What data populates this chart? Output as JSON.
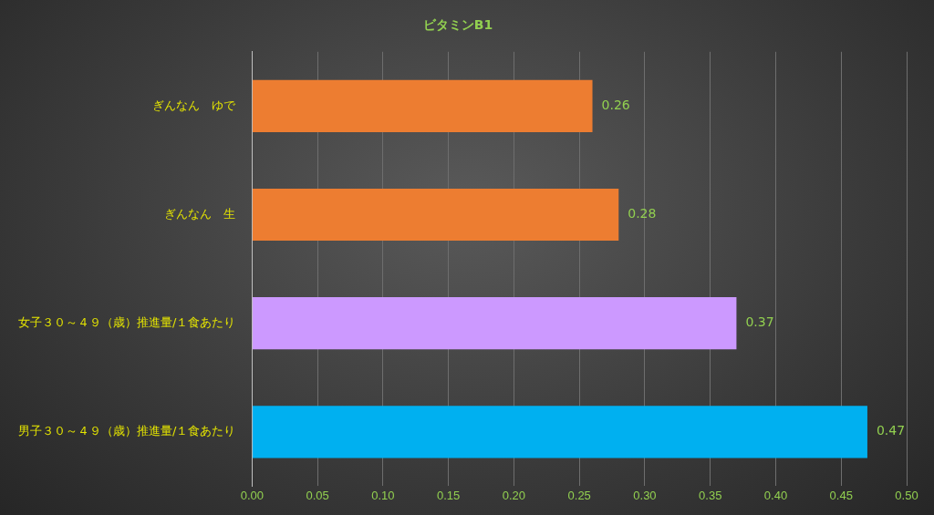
{
  "chart_data": {
    "type": "bar",
    "orientation": "horizontal",
    "title": "ビタミンB1",
    "categories": [
      "ぎんなん　ゆで",
      "ぎんなん　生",
      "女子３０～４９（歳）推進量/１食あたり",
      "男子３０～４９（歳）推進量/１食あたり"
    ],
    "values": [
      0.26,
      0.28,
      0.37,
      0.47
    ],
    "colors": [
      "#ed7d31",
      "#ed7d31",
      "#cc99ff",
      "#00b0f0"
    ],
    "xlim": [
      0,
      0.5
    ],
    "xticks": [
      {
        "value": 0,
        "label": "0.00"
      },
      {
        "value": 0.05,
        "label": "0.05"
      },
      {
        "value": 0.1,
        "label": "0.10"
      },
      {
        "value": 0.15,
        "label": "0.15"
      },
      {
        "value": 0.2,
        "label": "0.20"
      },
      {
        "value": 0.25,
        "label": "0.25"
      },
      {
        "value": 0.3,
        "label": "0.30"
      },
      {
        "value": 0.35,
        "label": "0.35"
      },
      {
        "value": 0.4,
        "label": "0.40"
      },
      {
        "value": 0.45,
        "label": "0.45"
      },
      {
        "value": 0.5,
        "label": "0.50"
      }
    ],
    "grid": "x",
    "data_labels": true,
    "legend": false
  }
}
